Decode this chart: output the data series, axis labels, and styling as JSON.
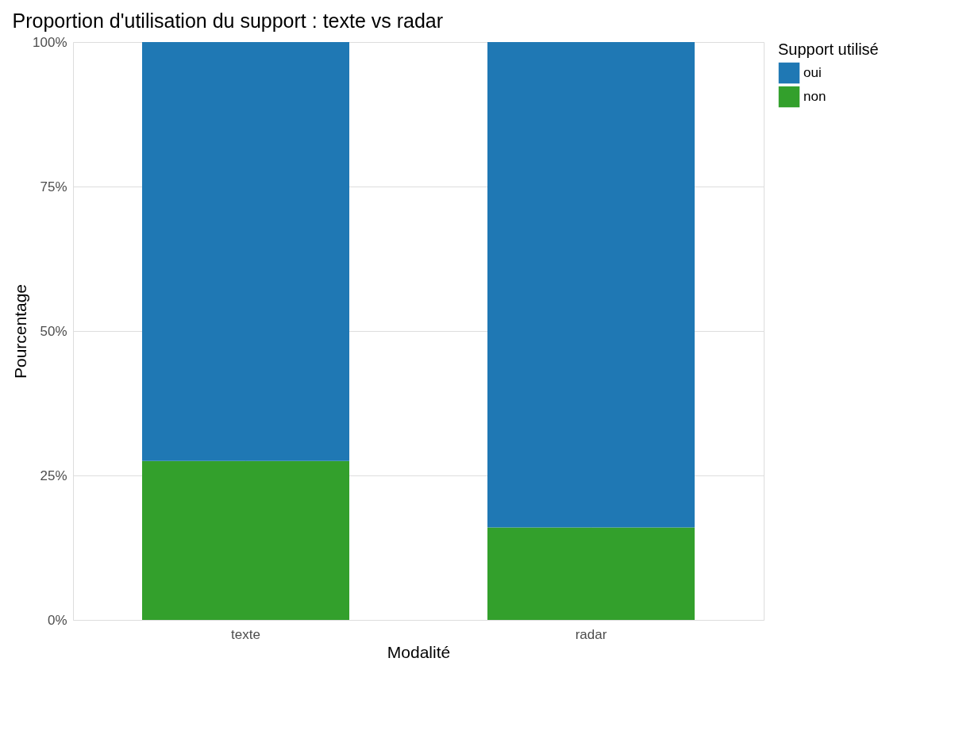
{
  "chart_data": {
    "type": "bar",
    "title": "Proportion d'utilisation du support : texte vs radar",
    "xlabel": "Modalité",
    "ylabel": "Pourcentage",
    "legend_title": "Support utilisé",
    "categories": [
      "texte",
      "radar"
    ],
    "series": [
      {
        "name": "non",
        "color": "#33a02c",
        "values": [
          27.5,
          16
        ]
      },
      {
        "name": "oui",
        "color": "#1f78b4",
        "values": [
          72.5,
          84
        ]
      }
    ],
    "stacked": true,
    "ylim": [
      0,
      100
    ],
    "yticks": [
      {
        "value": 0,
        "label": "0%"
      },
      {
        "value": 25,
        "label": "25%"
      },
      {
        "value": 50,
        "label": "50%"
      },
      {
        "value": 75,
        "label": "75%"
      },
      {
        "value": 100,
        "label": "100%"
      }
    ],
    "grid": true,
    "legend": "right"
  }
}
